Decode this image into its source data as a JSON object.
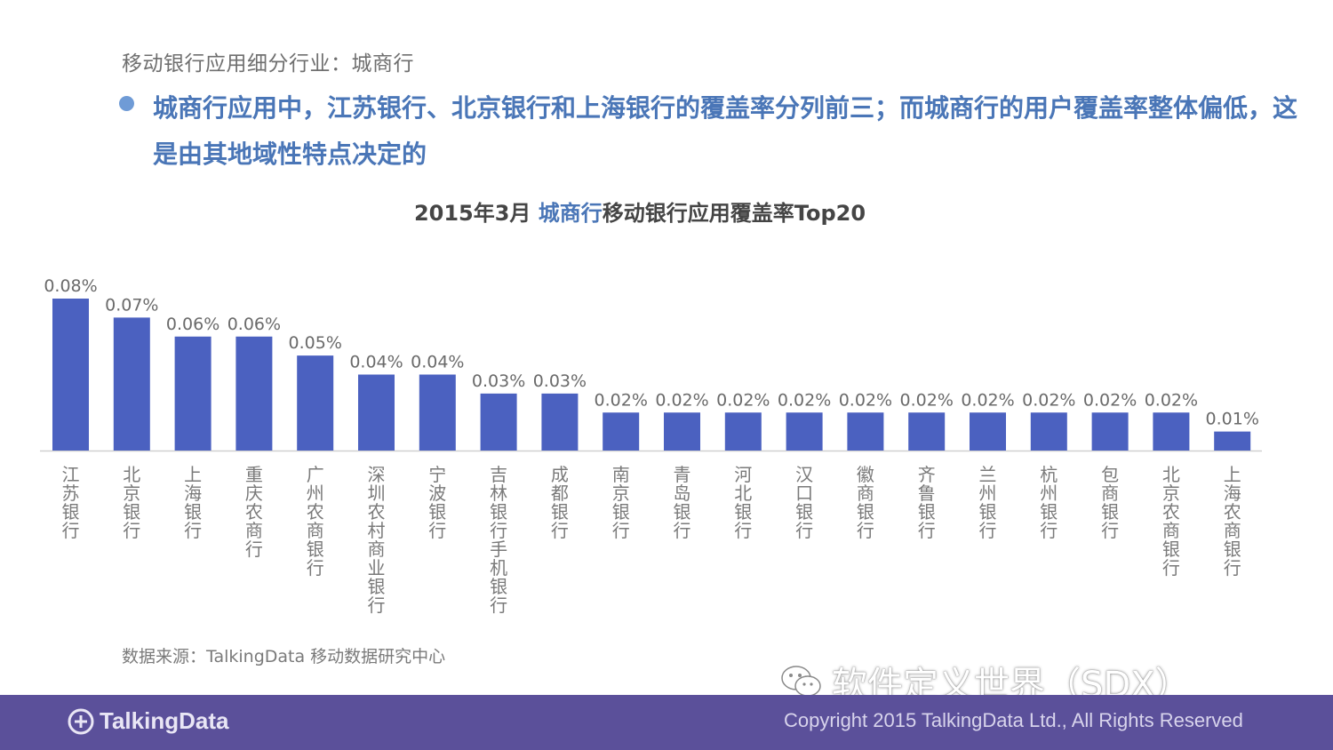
{
  "header": {
    "subtitle": "移动银行应用细分行业：城商行",
    "headline": "城商行应用中，江苏银行、北京银行和上海银行的覆盖率分列前三；而城商行的用户覆盖率整体偏低，这是由其地域性特点决定的"
  },
  "chart_data": {
    "type": "bar",
    "title_prefix": "2015年3月 ",
    "title_highlight": "城商行",
    "title_suffix": "移动银行应用覆盖率Top20",
    "categories": [
      "江苏银行",
      "北京银行",
      "上海银行",
      "重庆农商行",
      "广州农商银行",
      "深圳农村商业银行",
      "宁波银行",
      "吉林银行手机银行",
      "成都银行",
      "南京银行",
      "青岛银行",
      "河北银行",
      "汉口银行",
      "徽商银行",
      "齐鲁银行",
      "兰州银行",
      "杭州银行",
      "包商银行",
      "北京农商银行",
      "上海农商银行"
    ],
    "values": [
      0.08,
      0.07,
      0.06,
      0.06,
      0.05,
      0.04,
      0.04,
      0.03,
      0.03,
      0.02,
      0.02,
      0.02,
      0.02,
      0.02,
      0.02,
      0.02,
      0.02,
      0.02,
      0.02,
      0.01
    ],
    "value_labels": [
      "0.08%",
      "0.07%",
      "0.06%",
      "0.06%",
      "0.05%",
      "0.04%",
      "0.04%",
      "0.03%",
      "0.03%",
      "0.02%",
      "0.02%",
      "0.02%",
      "0.02%",
      "0.02%",
      "0.02%",
      "0.02%",
      "0.02%",
      "0.02%",
      "0.02%",
      "0.01%"
    ],
    "ylim": [
      0,
      0.08
    ],
    "grid": false,
    "bar_color": "#4b61c0"
  },
  "footer": {
    "source": "数据来源：TalkingData 移动数据研究中心",
    "watermark": "软件定义世界（SDX）",
    "logo_text": "TalkingData",
    "copyright": "Copyright 2015 TalkingData Ltd., All Rights Reserved",
    "bar_color": "#5b509a"
  }
}
